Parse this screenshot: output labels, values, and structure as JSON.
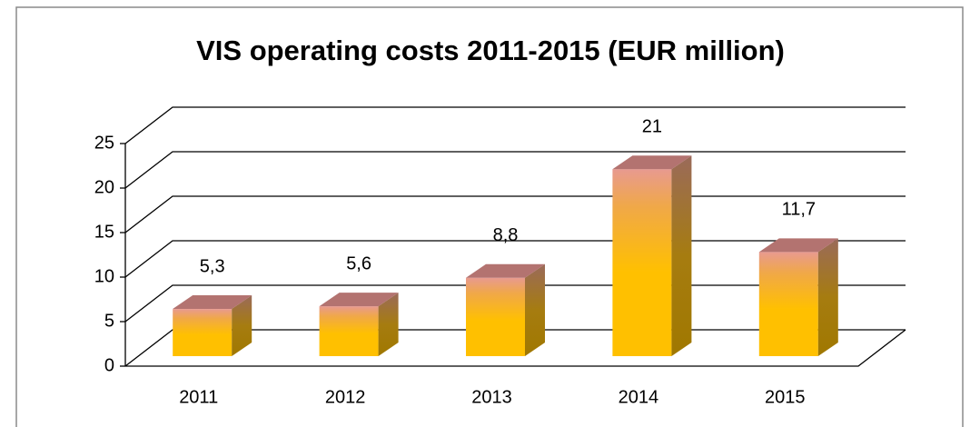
{
  "chart_data": {
    "type": "bar3d",
    "title": "VIS operating costs 2011-2015 (EUR million)",
    "categories": [
      "2011",
      "2012",
      "2013",
      "2014",
      "2015"
    ],
    "values": [
      5.3,
      5.6,
      8.8,
      21,
      11.7
    ],
    "value_labels": [
      "5,3",
      "5,6",
      "8,8",
      "21",
      "11,7"
    ],
    "color": "#ffc000",
    "ylim": [
      0,
      25
    ],
    "yticks": [
      0,
      5,
      10,
      15,
      20,
      25
    ],
    "grid": true
  }
}
